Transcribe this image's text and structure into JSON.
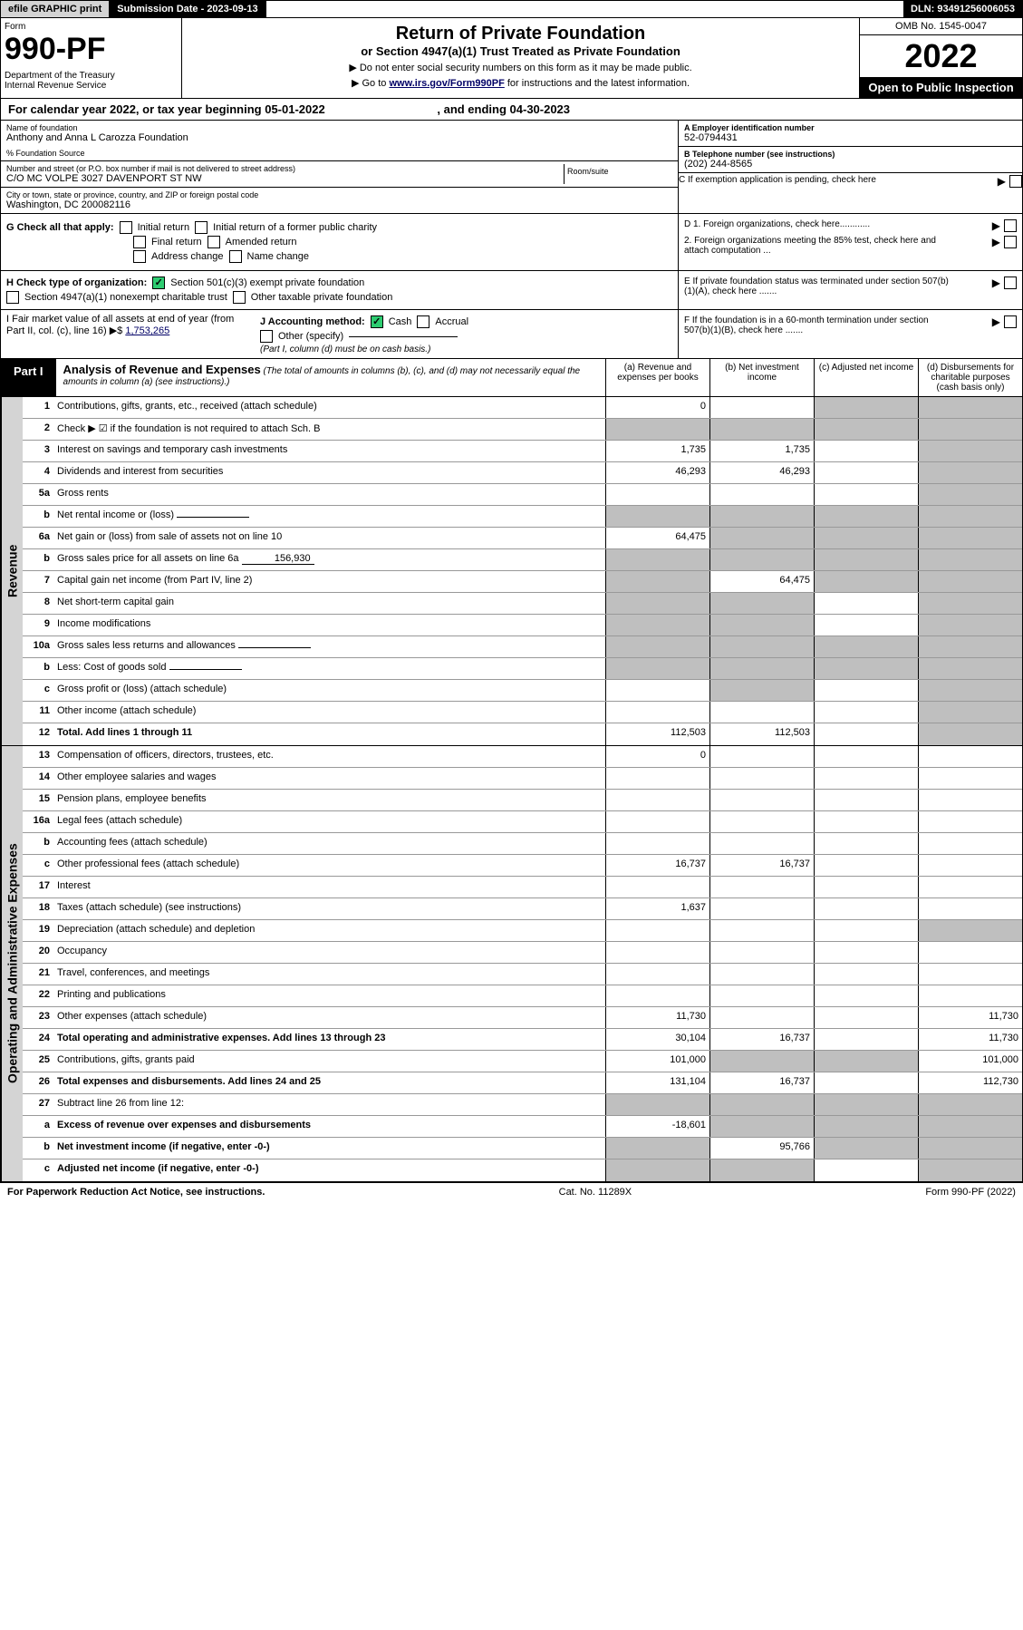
{
  "top": {
    "efile": "efile GRAPHIC print",
    "sub_date_label": "Submission Date - 2023-09-13",
    "dln": "DLN: 93491256006053"
  },
  "header": {
    "form_label": "Form",
    "form_num": "990-PF",
    "dept": "Department of the Treasury\nInternal Revenue Service",
    "title": "Return of Private Foundation",
    "subtitle": "or Section 4947(a)(1) Trust Treated as Private Foundation",
    "note1": "▶ Do not enter social security numbers on this form as it may be made public.",
    "note2_pre": "▶ Go to ",
    "note2_link": "www.irs.gov/Form990PF",
    "note2_post": " for instructions and the latest information.",
    "omb": "OMB No. 1545-0047",
    "year": "2022",
    "open": "Open to Public Inspection"
  },
  "cal": {
    "text": "For calendar year 2022, or tax year beginning 05-01-2022",
    "end": ", and ending 04-30-2023"
  },
  "info": {
    "name_label": "Name of foundation",
    "name": "Anthony and Anna L Carozza Foundation",
    "pct_label": "% Foundation Source",
    "addr_label": "Number and street (or P.O. box number if mail is not delivered to street address)",
    "addr": "C/O MC VOLPE 3027 DAVENPORT ST NW",
    "room_label": "Room/suite",
    "city_label": "City or town, state or province, country, and ZIP or foreign postal code",
    "city": "Washington, DC 200082116",
    "ein_label": "A Employer identification number",
    "ein": "52-0794431",
    "phone_label": "B Telephone number (see instructions)",
    "phone": "(202) 244-8565",
    "c_label": "C If exemption application is pending, check here",
    "d1": "D 1. Foreign organizations, check here............",
    "d2": "2. Foreign organizations meeting the 85% test, check here and attach computation ...",
    "e_label": "E If private foundation status was terminated under section 507(b)(1)(A), check here .......",
    "f_label": "F If the foundation is in a 60-month termination under section 507(b)(1)(B), check here ......."
  },
  "checks": {
    "g_label": "G Check all that apply:",
    "g_opts": [
      "Initial return",
      "Initial return of a former public charity",
      "Final return",
      "Amended return",
      "Address change",
      "Name change"
    ],
    "h_label": "H Check type of organization:",
    "h_opts": [
      "Section 501(c)(3) exempt private foundation",
      "Section 4947(a)(1) nonexempt charitable trust",
      "Other taxable private foundation"
    ],
    "i_label": "I Fair market value of all assets at end of year (from Part II, col. (c), line 16) ▶$ ",
    "i_val": "1,753,265",
    "j_label": "J Accounting method:",
    "j_opts": [
      "Cash",
      "Accrual",
      "Other (specify)"
    ],
    "j_note": "(Part I, column (d) must be on cash basis.)"
  },
  "part1": {
    "tab": "Part I",
    "title": "Analysis of Revenue and Expenses",
    "title_note": " (The total of amounts in columns (b), (c), and (d) may not necessarily equal the amounts in column (a) (see instructions).)",
    "col_a": "(a) Revenue and expenses per books",
    "col_b": "(b) Net investment income",
    "col_c": "(c) Adjusted net income",
    "col_d": "(d) Disbursements for charitable purposes (cash basis only)"
  },
  "side": {
    "rev": "Revenue",
    "exp": "Operating and Administrative Expenses"
  },
  "rows": [
    {
      "n": "1",
      "label": "Contributions, gifts, grants, etc., received (attach schedule)",
      "a": "0",
      "b": "",
      "c": "",
      "d": "",
      "grey": [
        "c",
        "d"
      ]
    },
    {
      "n": "2",
      "label": "Check ▶ ☑ if the foundation is not required to attach Sch. B",
      "a": "",
      "b": "",
      "c": "",
      "d": "",
      "grey": [
        "a",
        "b",
        "c",
        "d"
      ]
    },
    {
      "n": "3",
      "label": "Interest on savings and temporary cash investments",
      "a": "1,735",
      "b": "1,735",
      "c": "",
      "d": "",
      "grey": [
        "d"
      ]
    },
    {
      "n": "4",
      "label": "Dividends and interest from securities",
      "a": "46,293",
      "b": "46,293",
      "c": "",
      "d": "",
      "grey": [
        "d"
      ]
    },
    {
      "n": "5a",
      "label": "Gross rents",
      "a": "",
      "b": "",
      "c": "",
      "d": "",
      "grey": [
        "d"
      ]
    },
    {
      "n": "b",
      "label": "Net rental income or (loss)",
      "a": "",
      "b": "",
      "c": "",
      "d": "",
      "grey": [
        "a",
        "b",
        "c",
        "d"
      ],
      "inline": true
    },
    {
      "n": "6a",
      "label": "Net gain or (loss) from sale of assets not on line 10",
      "a": "64,475",
      "b": "",
      "c": "",
      "d": "",
      "grey": [
        "b",
        "c",
        "d"
      ]
    },
    {
      "n": "b",
      "label": "Gross sales price for all assets on line 6a",
      "a": "",
      "b": "",
      "c": "",
      "d": "",
      "grey": [
        "a",
        "b",
        "c",
        "d"
      ],
      "inline_val": "156,930"
    },
    {
      "n": "7",
      "label": "Capital gain net income (from Part IV, line 2)",
      "a": "",
      "b": "64,475",
      "c": "",
      "d": "",
      "grey": [
        "a",
        "c",
        "d"
      ]
    },
    {
      "n": "8",
      "label": "Net short-term capital gain",
      "a": "",
      "b": "",
      "c": "",
      "d": "",
      "grey": [
        "a",
        "b",
        "d"
      ]
    },
    {
      "n": "9",
      "label": "Income modifications",
      "a": "",
      "b": "",
      "c": "",
      "d": "",
      "grey": [
        "a",
        "b",
        "d"
      ]
    },
    {
      "n": "10a",
      "label": "Gross sales less returns and allowances",
      "a": "",
      "b": "",
      "c": "",
      "d": "",
      "grey": [
        "a",
        "b",
        "c",
        "d"
      ],
      "inline": true
    },
    {
      "n": "b",
      "label": "Less: Cost of goods sold",
      "a": "",
      "b": "",
      "c": "",
      "d": "",
      "grey": [
        "a",
        "b",
        "c",
        "d"
      ],
      "inline": true
    },
    {
      "n": "c",
      "label": "Gross profit or (loss) (attach schedule)",
      "a": "",
      "b": "",
      "c": "",
      "d": "",
      "grey": [
        "b",
        "d"
      ]
    },
    {
      "n": "11",
      "label": "Other income (attach schedule)",
      "a": "",
      "b": "",
      "c": "",
      "d": "",
      "grey": [
        "d"
      ]
    },
    {
      "n": "12",
      "label": "Total. Add lines 1 through 11",
      "a": "112,503",
      "b": "112,503",
      "c": "",
      "d": "",
      "bold": true,
      "grey": [
        "d"
      ]
    },
    {
      "n": "13",
      "label": "Compensation of officers, directors, trustees, etc.",
      "a": "0",
      "b": "",
      "c": "",
      "d": ""
    },
    {
      "n": "14",
      "label": "Other employee salaries and wages",
      "a": "",
      "b": "",
      "c": "",
      "d": ""
    },
    {
      "n": "15",
      "label": "Pension plans, employee benefits",
      "a": "",
      "b": "",
      "c": "",
      "d": ""
    },
    {
      "n": "16a",
      "label": "Legal fees (attach schedule)",
      "a": "",
      "b": "",
      "c": "",
      "d": ""
    },
    {
      "n": "b",
      "label": "Accounting fees (attach schedule)",
      "a": "",
      "b": "",
      "c": "",
      "d": ""
    },
    {
      "n": "c",
      "label": "Other professional fees (attach schedule)",
      "a": "16,737",
      "b": "16,737",
      "c": "",
      "d": ""
    },
    {
      "n": "17",
      "label": "Interest",
      "a": "",
      "b": "",
      "c": "",
      "d": ""
    },
    {
      "n": "18",
      "label": "Taxes (attach schedule) (see instructions)",
      "a": "1,637",
      "b": "",
      "c": "",
      "d": ""
    },
    {
      "n": "19",
      "label": "Depreciation (attach schedule) and depletion",
      "a": "",
      "b": "",
      "c": "",
      "d": "",
      "grey": [
        "d"
      ]
    },
    {
      "n": "20",
      "label": "Occupancy",
      "a": "",
      "b": "",
      "c": "",
      "d": ""
    },
    {
      "n": "21",
      "label": "Travel, conferences, and meetings",
      "a": "",
      "b": "",
      "c": "",
      "d": ""
    },
    {
      "n": "22",
      "label": "Printing and publications",
      "a": "",
      "b": "",
      "c": "",
      "d": ""
    },
    {
      "n": "23",
      "label": "Other expenses (attach schedule)",
      "a": "11,730",
      "b": "",
      "c": "",
      "d": "11,730"
    },
    {
      "n": "24",
      "label": "Total operating and administrative expenses. Add lines 13 through 23",
      "a": "30,104",
      "b": "16,737",
      "c": "",
      "d": "11,730",
      "bold": true
    },
    {
      "n": "25",
      "label": "Contributions, gifts, grants paid",
      "a": "101,000",
      "b": "",
      "c": "",
      "d": "101,000",
      "grey": [
        "b",
        "c"
      ]
    },
    {
      "n": "26",
      "label": "Total expenses and disbursements. Add lines 24 and 25",
      "a": "131,104",
      "b": "16,737",
      "c": "",
      "d": "112,730",
      "bold": true
    },
    {
      "n": "27",
      "label": "Subtract line 26 from line 12:",
      "a": "",
      "b": "",
      "c": "",
      "d": "",
      "grey": [
        "a",
        "b",
        "c",
        "d"
      ]
    },
    {
      "n": "a",
      "label": "Excess of revenue over expenses and disbursements",
      "a": "-18,601",
      "b": "",
      "c": "",
      "d": "",
      "bold": true,
      "grey": [
        "b",
        "c",
        "d"
      ]
    },
    {
      "n": "b",
      "label": "Net investment income (if negative, enter -0-)",
      "a": "",
      "b": "95,766",
      "c": "",
      "d": "",
      "bold": true,
      "grey": [
        "a",
        "c",
        "d"
      ]
    },
    {
      "n": "c",
      "label": "Adjusted net income (if negative, enter -0-)",
      "a": "",
      "b": "",
      "c": "",
      "d": "",
      "bold": true,
      "grey": [
        "a",
        "b",
        "d"
      ]
    }
  ],
  "footer": {
    "left": "For Paperwork Reduction Act Notice, see instructions.",
    "mid": "Cat. No. 11289X",
    "right": "Form 990-PF (2022)"
  },
  "rev_end_idx": 15
}
